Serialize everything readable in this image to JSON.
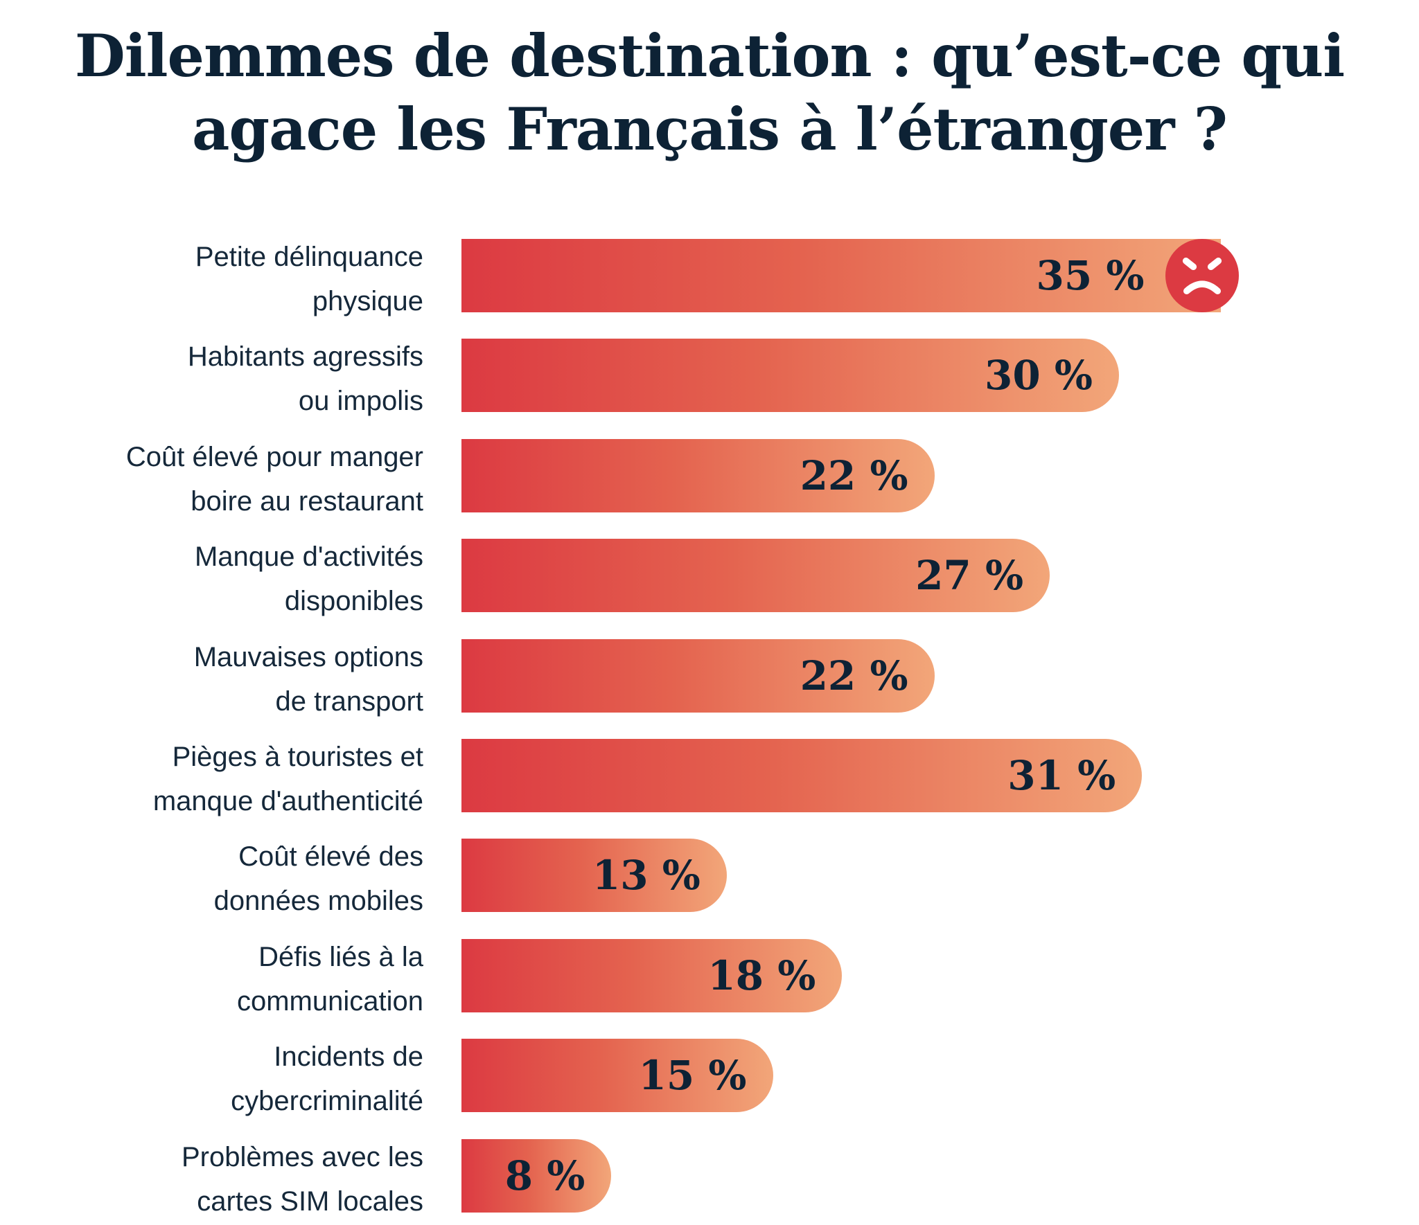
{
  "chart_data": {
    "type": "bar",
    "orientation": "horizontal",
    "title": [
      "Dilemmes de destination : qu’est-ce qui",
      "agace les Français à l’étranger ?"
    ],
    "categories": [
      [
        "Petite délinquance",
        "physique"
      ],
      [
        "Habitants agressifs",
        "ou impolis"
      ],
      [
        "Coût élevé pour manger",
        "boire au restaurant"
      ],
      [
        "Manque d'activités",
        "disponibles"
      ],
      [
        "Mauvaises options",
        "de transport"
      ],
      [
        "Pièges à touristes et",
        "manque d'authenticité"
      ],
      [
        "Coût élevé des",
        "données mobiles"
      ],
      [
        "Défis liés à la",
        "communication"
      ],
      [
        "Incidents de",
        "cybercriminalité"
      ],
      [
        "Problèmes avec les",
        "cartes SIM locales"
      ]
    ],
    "values": [
      35,
      30,
      22,
      27,
      22,
      31,
      13,
      18,
      15,
      8
    ],
    "value_labels": [
      "35 %",
      "30 %",
      "22 %",
      "27 %",
      "22 %",
      "31 %",
      "13 %",
      "18 %",
      "15 %",
      "8 %"
    ],
    "unit": "%",
    "grid": false,
    "colors": {
      "gradient_start": "#dc3a42",
      "gradient_end": "#f2a679",
      "text": "#0d2235",
      "icon": "#dc3a42"
    },
    "icon": "angry-face-icon"
  }
}
